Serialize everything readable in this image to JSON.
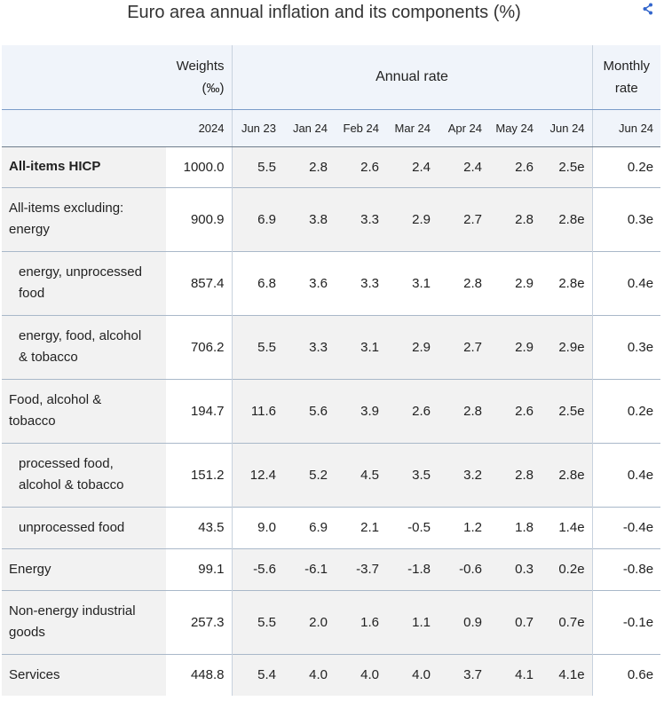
{
  "title": "Euro area annual inflation and its components (%)",
  "share_icon": "share-icon",
  "header": {
    "weights_line1": "Weights",
    "weights_line2": "(‰)",
    "annual_rate": "Annual rate",
    "monthly_line1": "Monthly",
    "monthly_line2": "rate",
    "weights_year": "2024",
    "annual_periods": [
      "Jun 23",
      "Jan 24",
      "Feb 24",
      "Mar 24",
      "Apr 24",
      "May 24",
      "Jun 24"
    ],
    "monthly_period": "Jun 24"
  },
  "chart_data": {
    "type": "table",
    "title": "Euro area annual inflation and its components (%)",
    "columns": [
      "Weights (‰) 2024",
      "Jun 23",
      "Jan 24",
      "Feb 24",
      "Mar 24",
      "Apr 24",
      "May 24",
      "Jun 24",
      "Monthly rate Jun 24"
    ],
    "rows": [
      {
        "label": [
          "All-items HICP"
        ],
        "indent": false,
        "bold": true,
        "weight": "1000.0",
        "annual": [
          "5.5",
          "2.8",
          "2.6",
          "2.4",
          "2.4",
          "2.6",
          "2.5e"
        ],
        "monthly": "0.2e"
      },
      {
        "label": [
          "All-items excluding:",
          "energy"
        ],
        "indent": false,
        "bold": false,
        "weight": "900.9",
        "annual": [
          "6.9",
          "3.8",
          "3.3",
          "2.9",
          "2.7",
          "2.8",
          "2.8e"
        ],
        "monthly": "0.3e"
      },
      {
        "label": [
          "energy, unprocessed",
          "food"
        ],
        "indent": true,
        "bold": false,
        "weight": "857.4",
        "annual": [
          "6.8",
          "3.6",
          "3.3",
          "3.1",
          "2.8",
          "2.9",
          "2.8e"
        ],
        "monthly": "0.4e"
      },
      {
        "label": [
          "energy, food, alcohol",
          "& tobacco"
        ],
        "indent": true,
        "bold": false,
        "weight": "706.2",
        "annual": [
          "5.5",
          "3.3",
          "3.1",
          "2.9",
          "2.7",
          "2.9",
          "2.9e"
        ],
        "monthly": "0.3e"
      },
      {
        "label": [
          "Food, alcohol &",
          "tobacco"
        ],
        "indent": false,
        "bold": false,
        "weight": "194.7",
        "annual": [
          "11.6",
          "5.6",
          "3.9",
          "2.6",
          "2.8",
          "2.6",
          "2.5e"
        ],
        "monthly": "0.2e"
      },
      {
        "label": [
          "processed food,",
          "alcohol & tobacco"
        ],
        "indent": true,
        "bold": false,
        "weight": "151.2",
        "annual": [
          "12.4",
          "5.2",
          "4.5",
          "3.5",
          "3.2",
          "2.8",
          "2.8e"
        ],
        "monthly": "0.4e"
      },
      {
        "label": [
          "unprocessed food"
        ],
        "indent": true,
        "bold": false,
        "weight": "43.5",
        "annual": [
          "9.0",
          "6.9",
          "2.1",
          "-0.5",
          "1.2",
          "1.8",
          "1.4e"
        ],
        "monthly": "-0.4e"
      },
      {
        "label": [
          "Energy"
        ],
        "indent": false,
        "bold": false,
        "weight": "99.1",
        "annual": [
          "-5.6",
          "-6.1",
          "-3.7",
          "-1.8",
          "-0.6",
          "0.3",
          "0.2e"
        ],
        "monthly": "-0.8e"
      },
      {
        "label": [
          "Non-energy industrial",
          "goods"
        ],
        "indent": false,
        "bold": false,
        "weight": "257.3",
        "annual": [
          "5.5",
          "2.0",
          "1.6",
          "1.1",
          "0.9",
          "0.7",
          "0.7e"
        ],
        "monthly": "-0.1e"
      },
      {
        "label": [
          "Services"
        ],
        "indent": false,
        "bold": false,
        "weight": "448.8",
        "annual": [
          "5.4",
          "4.0",
          "4.0",
          "4.0",
          "3.7",
          "4.1",
          "4.1e"
        ],
        "monthly": "0.6e"
      }
    ]
  }
}
